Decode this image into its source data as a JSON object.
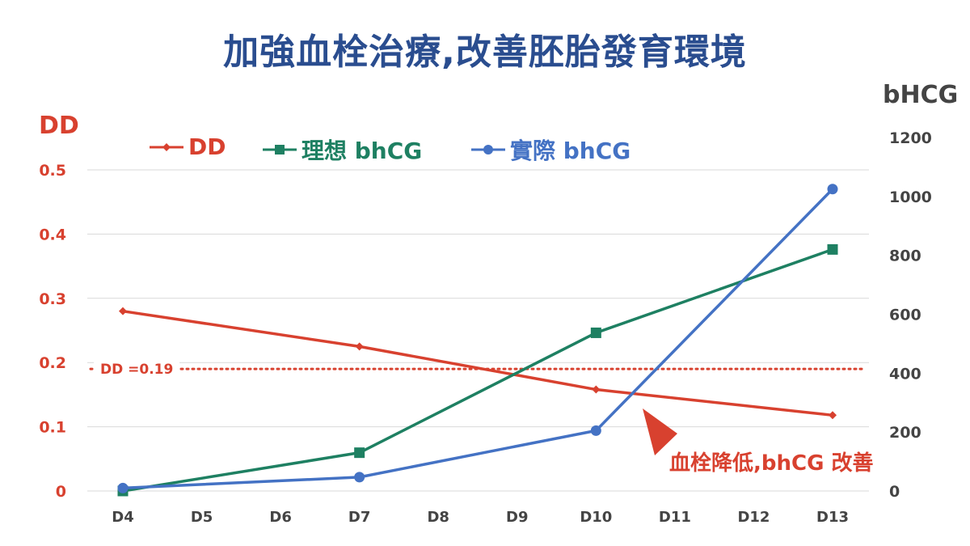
{
  "title": "加強血栓治療,改善胚胎發育環境",
  "colors": {
    "dd": "#d8412f",
    "ideal": "#1e8062",
    "actual": "#4472c4",
    "title": "#2a4d8f",
    "grid": "#d9d9d9",
    "right_axis_text": "#444444"
  },
  "chart_data": {
    "type": "line",
    "categories": [
      "D4",
      "D5",
      "D6",
      "D7",
      "D8",
      "D9",
      "D10",
      "D11",
      "D12",
      "D13"
    ],
    "y_left": {
      "label": "DD",
      "range": [
        0,
        0.5
      ],
      "ticks": [
        "0",
        "0.1",
        "0.2",
        "0.3",
        "0.4",
        "0.5"
      ]
    },
    "y_right": {
      "label": "bHCG",
      "range": [
        0,
        1200
      ],
      "ticks": [
        "0",
        "200",
        "400",
        "600",
        "800",
        "1000",
        "1200"
      ]
    },
    "series": [
      {
        "name": "DD",
        "axis": "left",
        "marker": "diamond",
        "x": [
          "D4",
          "D7",
          "D10",
          "D13"
        ],
        "values": [
          0.28,
          0.225,
          0.158,
          0.118
        ]
      },
      {
        "name": "理想 bhCG",
        "axis": "right",
        "marker": "square",
        "x": [
          "D4",
          "D7",
          "D10",
          "D13"
        ],
        "values": [
          0,
          130,
          537,
          820
        ]
      },
      {
        "name": "實際 bhCG",
        "axis": "right",
        "marker": "circle",
        "x": [
          "D4",
          "D7",
          "D10",
          "D13"
        ],
        "values": [
          10,
          47,
          205,
          1025
        ]
      }
    ],
    "reference_line": {
      "label": "DD =0.19",
      "value": 0.19,
      "axis": "left",
      "style": "dotted"
    },
    "annotation": {
      "text": "血栓降低,bhCG 改善",
      "near": "D10-D11"
    },
    "grid": true,
    "legend_position": "top-left"
  }
}
